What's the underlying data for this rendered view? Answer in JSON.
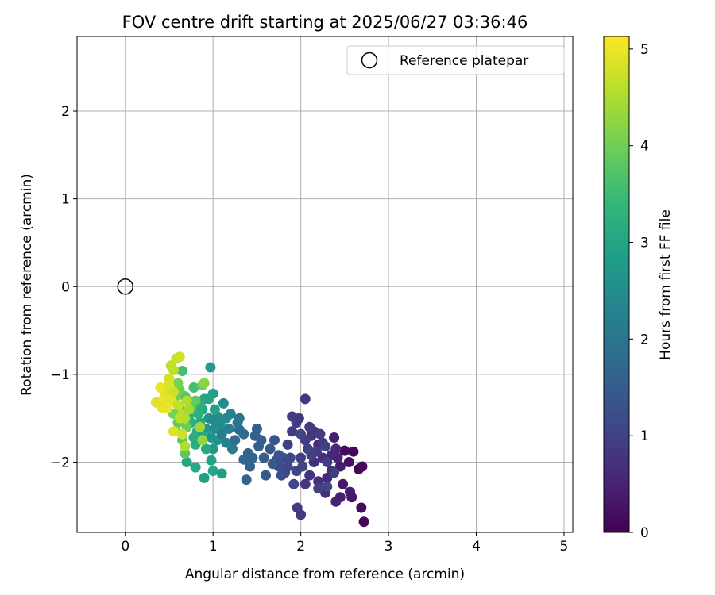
{
  "chart_data": {
    "type": "scatter",
    "title": "FOV centre drift starting at 2025/06/27 03:36:46",
    "xlabel": "Angular distance from reference (arcmin)",
    "ylabel": "Rotation from reference (arcmin)",
    "xlim": [
      -0.55,
      5.1
    ],
    "ylim": [
      -2.8,
      2.85
    ],
    "xticks": [
      0,
      1,
      2,
      3,
      4,
      5
    ],
    "xtick_labels": [
      "0",
      "1",
      "2",
      "3",
      "4",
      "5"
    ],
    "yticks": [
      -2,
      -1,
      0,
      1,
      2
    ],
    "ytick_labels": [
      "−2",
      "−1",
      "0",
      "1",
      "2"
    ],
    "grid": true,
    "legend": {
      "position": "top-right",
      "entries": [
        {
          "label": "Reference platepar",
          "marker": "open-circle"
        }
      ]
    },
    "colorbar": {
      "label": "Hours from first FF file",
      "colormap": "viridis",
      "range": [
        0,
        5.13
      ],
      "ticks": [
        0,
        1,
        2,
        3,
        4,
        5
      ],
      "tick_labels": [
        "0",
        "1",
        "2",
        "3",
        "4",
        "5"
      ]
    },
    "reference_point": {
      "x": 0,
      "y": 0
    },
    "series": [
      {
        "points": [
          [
            2.72,
            -2.68
          ],
          [
            2.69,
            -2.52
          ],
          [
            2.66,
            -2.08
          ],
          [
            2.7,
            -2.05
          ],
          [
            2.6,
            -1.88
          ],
          [
            2.5,
            -1.87
          ],
          [
            2.55,
            -2.0
          ],
          [
            2.58,
            -2.4
          ],
          [
            2.56,
            -2.34
          ],
          [
            2.45,
            -2.4
          ],
          [
            2.4,
            -2.45
          ],
          [
            2.48,
            -2.25
          ],
          [
            2.45,
            -2.05
          ],
          [
            2.42,
            -1.95
          ],
          [
            2.4,
            -1.85
          ],
          [
            2.38,
            -1.72
          ],
          [
            2.35,
            -2.1
          ],
          [
            2.3,
            -2.18
          ],
          [
            2.28,
            -2.35
          ],
          [
            2.25,
            -1.95
          ],
          [
            2.2,
            -1.8
          ],
          [
            2.15,
            -2.0
          ],
          [
            2.1,
            -2.15
          ],
          [
            2.05,
            -2.25
          ],
          [
            2.0,
            -2.6
          ],
          [
            1.96,
            -2.52
          ],
          [
            2.05,
            -1.28
          ],
          [
            2.12,
            -1.7
          ],
          [
            2.35,
            -1.92
          ],
          [
            2.2,
            -2.22
          ],
          [
            2.3,
            -2.0
          ],
          [
            2.25,
            -1.78
          ],
          [
            2.18,
            -1.88
          ],
          [
            2.15,
            -1.65
          ],
          [
            2.1,
            -1.6
          ],
          [
            2.05,
            -1.75
          ],
          [
            2.0,
            -1.95
          ],
          [
            1.95,
            -2.1
          ],
          [
            1.92,
            -2.25
          ],
          [
            1.88,
            -1.95
          ],
          [
            1.85,
            -1.8
          ],
          [
            1.9,
            -1.65
          ],
          [
            1.95,
            -1.55
          ],
          [
            1.98,
            -1.5
          ],
          [
            2.2,
            -2.3
          ],
          [
            2.3,
            -2.28
          ],
          [
            2.08,
            -1.85
          ],
          [
            2.02,
            -2.05
          ],
          [
            1.8,
            -1.95
          ],
          [
            1.75,
            -2.05
          ],
          [
            1.82,
            -2.12
          ],
          [
            2.12,
            -1.92
          ],
          [
            2.22,
            -1.68
          ],
          [
            2.28,
            -1.82
          ],
          [
            2.0,
            -1.68
          ],
          [
            1.9,
            -1.48
          ],
          [
            1.78,
            -2.15
          ],
          [
            1.72,
            -1.98
          ],
          [
            1.85,
            -2.05
          ],
          [
            2.38,
            -2.12
          ],
          [
            1.7,
            -1.75
          ],
          [
            1.65,
            -1.85
          ],
          [
            1.6,
            -2.15
          ],
          [
            1.55,
            -1.75
          ],
          [
            1.5,
            -1.62
          ],
          [
            1.45,
            -1.95
          ],
          [
            1.4,
            -1.9
          ],
          [
            1.38,
            -2.2
          ],
          [
            1.42,
            -2.05
          ],
          [
            1.35,
            -1.97
          ],
          [
            1.3,
            -1.63
          ],
          [
            1.25,
            -1.75
          ],
          [
            1.48,
            -1.7
          ],
          [
            1.75,
            -1.92
          ],
          [
            1.68,
            -2.02
          ],
          [
            1.52,
            -1.82
          ],
          [
            1.58,
            -1.95
          ],
          [
            1.35,
            -1.68
          ],
          [
            1.28,
            -1.55
          ],
          [
            1.22,
            -1.85
          ],
          [
            1.18,
            -1.62
          ],
          [
            1.2,
            -1.45
          ],
          [
            1.15,
            -1.5
          ],
          [
            1.12,
            -1.33
          ],
          [
            1.08,
            -1.58
          ],
          [
            1.05,
            -1.75
          ],
          [
            1.02,
            -1.62
          ],
          [
            1.0,
            -1.85
          ],
          [
            0.98,
            -1.72
          ],
          [
            0.95,
            -1.5
          ],
          [
            0.92,
            -1.62
          ],
          [
            1.1,
            -1.68
          ],
          [
            1.3,
            -1.5
          ],
          [
            1.0,
            -1.52
          ],
          [
            1.05,
            -1.48
          ],
          [
            1.15,
            -1.78
          ],
          [
            0.97,
            -0.92
          ],
          [
            1.0,
            -1.22
          ],
          [
            1.02,
            -1.4
          ],
          [
            0.95,
            -1.28
          ],
          [
            0.9,
            -1.28
          ],
          [
            0.88,
            -1.4
          ],
          [
            0.85,
            -1.55
          ],
          [
            0.82,
            -1.65
          ],
          [
            0.8,
            -1.8
          ],
          [
            0.78,
            -1.72
          ],
          [
            0.75,
            -1.55
          ],
          [
            0.72,
            -1.48
          ],
          [
            0.7,
            -2.0
          ],
          [
            0.8,
            -2.06
          ],
          [
            0.9,
            -2.18
          ],
          [
            0.98,
            -1.98
          ],
          [
            1.0,
            -2.1
          ],
          [
            1.1,
            -2.13
          ],
          [
            0.92,
            -1.85
          ],
          [
            0.88,
            -1.7
          ],
          [
            0.85,
            -1.35
          ],
          [
            0.83,
            -1.45
          ],
          [
            0.78,
            -1.15
          ],
          [
            0.72,
            -1.3
          ],
          [
            0.68,
            -1.25
          ],
          [
            0.65,
            -0.96
          ],
          [
            0.62,
            -1.4
          ],
          [
            0.6,
            -1.55
          ],
          [
            0.65,
            -1.75
          ],
          [
            0.68,
            -1.9
          ],
          [
            0.58,
            -1.25
          ],
          [
            0.55,
            -1.45
          ],
          [
            0.58,
            -1.65
          ],
          [
            0.62,
            -1.18
          ],
          [
            0.6,
            -1.1
          ],
          [
            0.88,
            -1.12
          ],
          [
            0.7,
            -1.6
          ],
          [
            0.75,
            -1.38
          ],
          [
            0.8,
            -1.3
          ],
          [
            0.55,
            -0.95
          ],
          [
            0.52,
            -0.9
          ],
          [
            0.58,
            -0.82
          ],
          [
            0.62,
            -0.8
          ],
          [
            0.5,
            -1.05
          ],
          [
            0.48,
            -1.2
          ],
          [
            0.45,
            -1.25
          ],
          [
            0.42,
            -1.3
          ],
          [
            0.4,
            -1.15
          ],
          [
            0.38,
            -1.32
          ],
          [
            0.5,
            -1.12
          ],
          [
            0.55,
            -1.2
          ],
          [
            0.52,
            -1.3
          ],
          [
            0.48,
            -1.38
          ],
          [
            0.42,
            -1.38
          ],
          [
            0.35,
            -1.32
          ],
          [
            0.6,
            -1.35
          ],
          [
            0.65,
            -1.45
          ],
          [
            0.68,
            -1.5
          ],
          [
            0.7,
            -1.3
          ],
          [
            0.72,
            -1.4
          ],
          [
            0.62,
            -1.5
          ],
          [
            0.65,
            -1.68
          ],
          [
            0.55,
            -1.65
          ],
          [
            0.68,
            -1.82
          ],
          [
            0.88,
            -1.75
          ],
          [
            0.85,
            -1.6
          ],
          [
            0.9,
            -1.1
          ]
        ],
        "hours": [
          0.05,
          0.15,
          0.1,
          0.1,
          0.1,
          0.12,
          0.25,
          0.3,
          0.4,
          0.45,
          0.5,
          0.35,
          0.4,
          0.5,
          0.55,
          0.45,
          0.6,
          0.6,
          0.65,
          0.7,
          0.6,
          0.7,
          0.75,
          0.8,
          0.85,
          0.9,
          0.8,
          0.75,
          0.55,
          0.65,
          0.9,
          0.85,
          0.95,
          0.8,
          0.9,
          0.95,
          1.0,
          1.05,
          1.1,
          1.1,
          1.0,
          0.9,
          0.95,
          0.85,
          1.0,
          1.05,
          1.0,
          1.05,
          1.15,
          1.2,
          1.15,
          1.0,
          0.95,
          1.0,
          1.05,
          0.9,
          1.2,
          1.25,
          1.1,
          0.95,
          1.35,
          1.4,
          1.45,
          1.5,
          1.55,
          1.6,
          1.65,
          1.65,
          1.6,
          1.7,
          1.75,
          1.8,
          1.55,
          1.35,
          1.45,
          1.55,
          1.5,
          1.75,
          2.0,
          2.1,
          2.2,
          2.3,
          2.4,
          2.5,
          2.5,
          2.6,
          2.55,
          2.7,
          2.65,
          2.6,
          2.7,
          2.2,
          2.0,
          2.45,
          2.5,
          2.3,
          2.8,
          2.9,
          2.95,
          3.0,
          3.0,
          3.05,
          3.1,
          3.15,
          3.2,
          3.2,
          3.25,
          3.3,
          3.0,
          3.05,
          2.9,
          2.95,
          3.0,
          2.85,
          3.05,
          3.1,
          3.2,
          3.25,
          3.6,
          3.7,
          3.75,
          3.6,
          3.8,
          3.85,
          3.9,
          3.8,
          4.0,
          4.05,
          4.1,
          4.0,
          4.05,
          4.0,
          3.95,
          3.9,
          3.85,
          4.6,
          4.65,
          4.7,
          4.75,
          4.8,
          4.85,
          4.9,
          4.95,
          5.0,
          5.05,
          4.85,
          4.75,
          4.9,
          5.0,
          4.95,
          4.9,
          4.7,
          4.6,
          4.55,
          4.5,
          4.45,
          4.6,
          4.75,
          4.9,
          4.5,
          4.3,
          4.4,
          4.2
        ]
      }
    ]
  },
  "colors": {
    "viridis_stops": [
      "#440154",
      "#482878",
      "#3e4a89",
      "#31688e",
      "#26828e",
      "#1f9e89",
      "#35b779",
      "#6ece58",
      "#b5de2b",
      "#fde725"
    ],
    "grid": "#b0b0b0",
    "axis": "#000000"
  }
}
